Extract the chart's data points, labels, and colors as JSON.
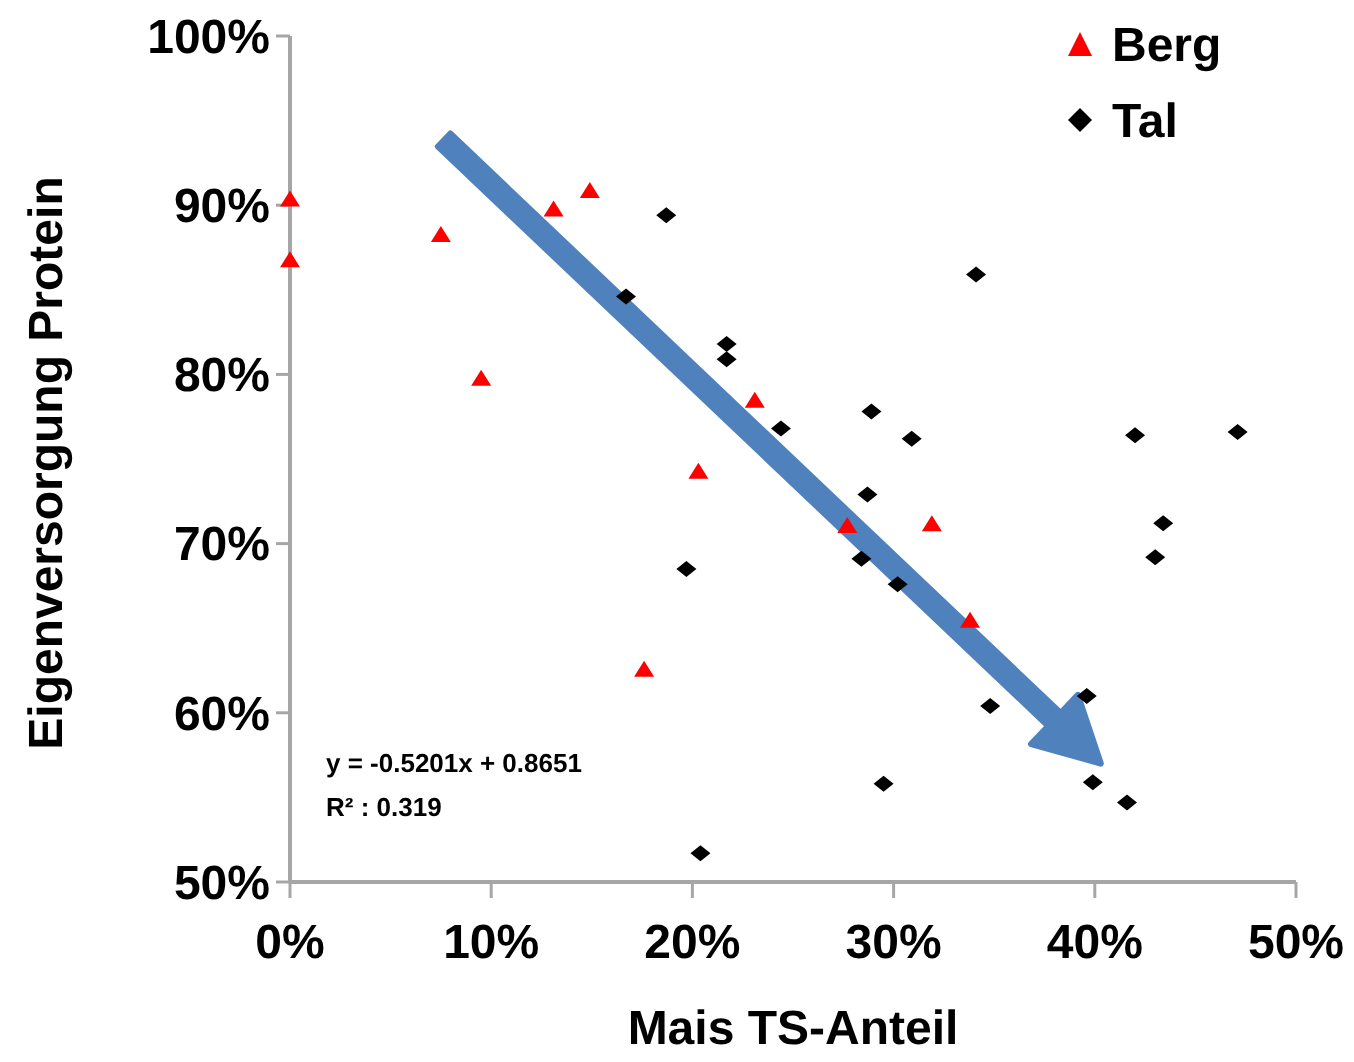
{
  "chart_data": {
    "type": "scatter",
    "xlabel": "Mais TS-Anteil",
    "ylabel": "Eigenversorgung Protein",
    "xlim": [
      0,
      0.5
    ],
    "ylim": [
      0.5,
      1.0
    ],
    "xticks": [
      {
        "value": 0,
        "label": "0%"
      },
      {
        "value": 0.1,
        "label": "10%"
      },
      {
        "value": 0.2,
        "label": "20%"
      },
      {
        "value": 0.3,
        "label": "30%"
      },
      {
        "value": 0.4,
        "label": "40%"
      },
      {
        "value": 0.5,
        "label": "50%"
      }
    ],
    "yticks": [
      {
        "value": 0.5,
        "label": "50%"
      },
      {
        "value": 0.6,
        "label": "60%"
      },
      {
        "value": 0.7,
        "label": "70%"
      },
      {
        "value": 0.8,
        "label": "80%"
      },
      {
        "value": 0.9,
        "label": "90%"
      },
      {
        "value": 1.0,
        "label": "100%"
      }
    ],
    "grid": false,
    "legend": "top right",
    "annotations": [
      "y = -0.5201x + 0.8651",
      "R² : 0.319"
    ],
    "series": [
      {
        "name": "Berg",
        "color": "#ff0000",
        "marker": "triangle",
        "x": [
          0,
          0,
          0.075,
          0.131,
          0.149,
          0.095,
          0.231,
          0.203,
          0.277,
          0.319,
          0.338,
          0.176
        ],
        "values": [
          0.904,
          0.868,
          0.883,
          0.898,
          0.909,
          0.798,
          0.785,
          0.743,
          0.711,
          0.712,
          0.655,
          0.626
        ]
      },
      {
        "name": "Tal",
        "color": "#000000",
        "marker": "diamond",
        "x": [
          0.187,
          0.167,
          0.217,
          0.217,
          0.244,
          0.289,
          0.309,
          0.287,
          0.284,
          0.302,
          0.197,
          0.341,
          0.42,
          0.471,
          0.434,
          0.43,
          0.348,
          0.396,
          0.295,
          0.399,
          0.416,
          0.204
        ],
        "values": [
          0.894,
          0.846,
          0.818,
          0.809,
          0.768,
          0.778,
          0.762,
          0.729,
          0.691,
          0.676,
          0.685,
          0.859,
          0.764,
          0.766,
          0.712,
          0.692,
          0.604,
          0.61,
          0.558,
          0.559,
          0.547,
          0.517
        ]
      }
    ]
  }
}
